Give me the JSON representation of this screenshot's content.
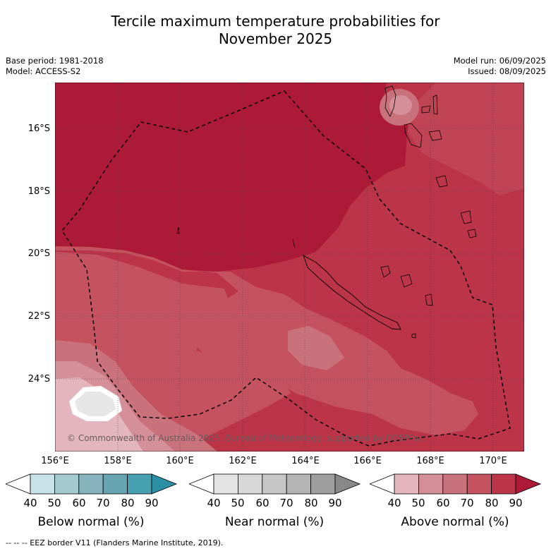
{
  "title": {
    "line1": "Tercile maximum temperature probabilities for",
    "line2": "November 2025"
  },
  "meta": {
    "base_period": "Base period: 1981-2018",
    "model": "Model: ACCESS-S2",
    "model_run": "Model run: 06/09/2025",
    "issued": "Issued: 08/09/2025"
  },
  "axes": {
    "lat_labels": [
      "16°S",
      "18°S",
      "20°S",
      "22°S",
      "24°S"
    ],
    "lon_labels": [
      "156°E",
      "158°E",
      "160°E",
      "162°E",
      "164°E",
      "166°E",
      "168°E",
      "170°E"
    ]
  },
  "copyright": "© Commonwealth of Australia 2025, Bureau of Meteorology, supported by COSPPac",
  "colorbars": [
    {
      "label": "Below normal (%)",
      "ticks": [
        "40",
        "50",
        "60",
        "70",
        "80",
        "90"
      ],
      "colors": [
        "#ffffff",
        "#c8e3e8",
        "#a4c9cf",
        "#86b3bd",
        "#67a4b2",
        "#47a0b0",
        "#2a8fa5"
      ]
    },
    {
      "label": "Near normal (%)",
      "ticks": [
        "40",
        "50",
        "60",
        "70",
        "80",
        "90"
      ],
      "colors": [
        "#ffffff",
        "#e3e3e3",
        "#d7d7d7",
        "#c6c6c6",
        "#b4b4b4",
        "#9e9e9e",
        "#888888"
      ]
    },
    {
      "label": "Above normal (%)",
      "ticks": [
        "40",
        "50",
        "60",
        "70",
        "80",
        "90"
      ],
      "colors": [
        "#ffffff",
        "#e3b6be",
        "#d58f99",
        "#ca727c",
        "#c4525f",
        "#bc3448",
        "#ad1a38"
      ]
    }
  ],
  "footer": "--  --  -- EEZ border V11 (Flanders Marine Institute, 2019)."
}
